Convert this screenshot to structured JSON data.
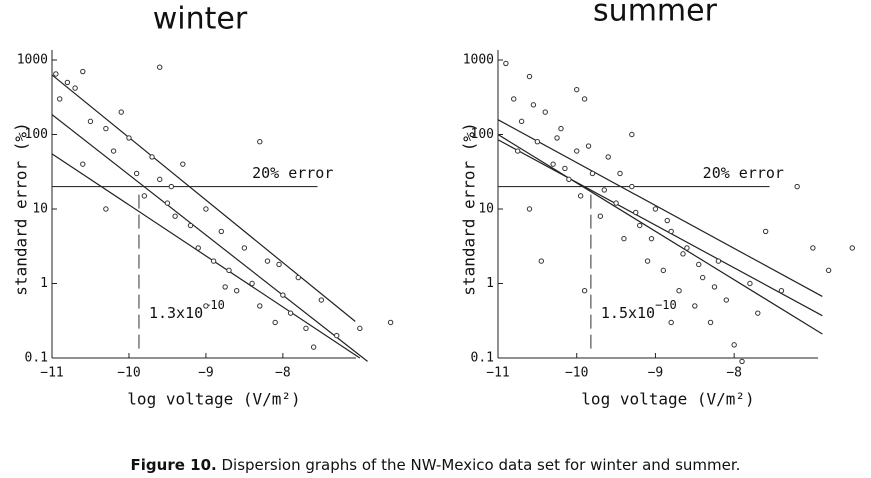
{
  "chart_data": [
    {
      "type": "scatter",
      "title": "winter",
      "x_label": "log voltage (V/m²)",
      "y_label": "standard error (%)",
      "xlim": [
        -11,
        -6.4
      ],
      "ylim": [
        0.1,
        1000
      ],
      "log_y": true,
      "xticks": [
        {
          "value": -11,
          "label": "−11"
        },
        {
          "value": -10,
          "label": "−10"
        },
        {
          "value": -9,
          "label": "−9"
        },
        {
          "value": -8,
          "label": "−8"
        }
      ],
      "yticks": [
        0.1,
        1,
        10,
        100,
        1000
      ],
      "series": [
        {
          "name": "winter",
          "color": "#333333",
          "x": [
            -10.95,
            -10.8,
            -10.7,
            -10.6,
            -10.9,
            -10.5,
            -10.3,
            -10.2,
            -10.6,
            -10.0,
            -9.9,
            -9.8,
            -9.7,
            -9.6,
            -9.5,
            -9.4,
            -9.3,
            -9.2,
            -9.1,
            -9.0,
            -8.9,
            -8.8,
            -8.7,
            -8.6,
            -8.5,
            -8.4,
            -8.3,
            -8.2,
            -8.1,
            -8.0,
            -7.9,
            -7.8,
            -7.7,
            -7.5,
            -7.3,
            -7.0,
            -6.6,
            -9.6,
            -8.3,
            -10.3,
            -9.0,
            -7.6,
            -10.1,
            -9.45,
            -8.75,
            -8.05
          ],
          "values": [
            650,
            500,
            420,
            700,
            300,
            150,
            120,
            60,
            40,
            90,
            30,
            15,
            50,
            25,
            12,
            8,
            40,
            6,
            3,
            10,
            2,
            5,
            1.5,
            0.8,
            3,
            1,
            0.5,
            2,
            0.3,
            0.7,
            0.4,
            1.2,
            0.25,
            0.6,
            0.2,
            0.25,
            0.3,
            800,
            80,
            10,
            0.5,
            0.14,
            200,
            20,
            0.9,
            1.8
          ]
        }
      ],
      "fit_lines": [
        {
          "x": [
            -11,
            -7.06
          ],
          "values": [
            630,
            0.31
          ]
        },
        {
          "x": [
            -11,
            -6.9
          ],
          "values": [
            185,
            0.09
          ]
        },
        {
          "x": [
            -11,
            -7.0
          ],
          "values": [
            55,
            0.1
          ]
        }
      ],
      "hline": {
        "value": 20,
        "label": "20% error"
      },
      "vline": {
        "value": -9.87,
        "base": "1.3x10",
        "exponent": "−10"
      }
    },
    {
      "type": "scatter",
      "title": "summer",
      "x_label": "log voltage (V/m²)",
      "y_label": "standard error (%)",
      "xlim": [
        -11,
        -6.3
      ],
      "ylim": [
        0.1,
        1000
      ],
      "log_y": true,
      "xticks": [
        {
          "value": -11,
          "label": "−11"
        },
        {
          "value": -10,
          "label": "−10"
        },
        {
          "value": -9,
          "label": "−9"
        },
        {
          "value": -8,
          "label": "−8"
        }
      ],
      "yticks": [
        0.1,
        1,
        10,
        100,
        1000
      ],
      "series": [
        {
          "name": "summer",
          "color": "#333333",
          "x": [
            -10.9,
            -10.8,
            -10.7,
            -10.6,
            -10.5,
            -10.4,
            -10.3,
            -10.2,
            -10.1,
            -10.0,
            -9.95,
            -9.9,
            -9.8,
            -9.7,
            -9.6,
            -9.5,
            -9.4,
            -9.3,
            -9.2,
            -9.1,
            -9.0,
            -8.9,
            -8.8,
            -8.7,
            -8.6,
            -8.5,
            -8.4,
            -8.3,
            -8.2,
            -8.1,
            -8.0,
            -7.8,
            -7.6,
            -7.4,
            -7.2,
            -7.0,
            -6.8,
            -10.6,
            -10.0,
            -9.3,
            -8.8,
            -10.45,
            -9.9,
            -7.9,
            -10.75,
            -10.55,
            -10.25,
            -10.15,
            -9.85,
            -9.65,
            -9.45,
            -9.25,
            -9.05,
            -8.85,
            -8.65,
            -8.45,
            -8.25,
            -7.7,
            -6.5
          ],
          "values": [
            900,
            300,
            150,
            600,
            80,
            200,
            40,
            120,
            25,
            60,
            15,
            300,
            30,
            8,
            50,
            12,
            4,
            20,
            6,
            2,
            10,
            1.5,
            5,
            0.8,
            3,
            0.5,
            1.2,
            0.3,
            2,
            0.6,
            0.15,
            1,
            5,
            0.8,
            20,
            3,
            1.5,
            10,
            400,
            100,
            0.3,
            2,
            0.8,
            0.09,
            60,
            250,
            90,
            35,
            70,
            18,
            30,
            9,
            4,
            7,
            2.5,
            1.8,
            0.9,
            0.4,
            3
          ]
        }
      ],
      "fit_lines": [
        {
          "x": [
            -11,
            -6.88
          ],
          "values": [
            158,
            0.67
          ]
        },
        {
          "x": [
            -11,
            -6.88
          ],
          "values": [
            100,
            0.21
          ]
        },
        {
          "x": [
            -11,
            -6.88
          ],
          "values": [
            85,
            0.37
          ]
        }
      ],
      "hline": {
        "value": 20,
        "label": "20% error"
      },
      "vline": {
        "value": -9.82,
        "base": "1.5x10",
        "exponent": "−10"
      }
    }
  ],
  "caption": {
    "label": "Figure 10.",
    "text": " Dispersion graphs of the NW-Mexico data set for winter and summer."
  }
}
